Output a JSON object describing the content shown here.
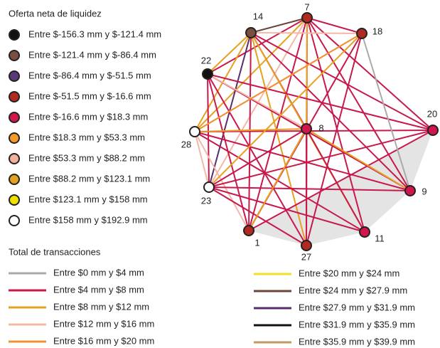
{
  "node_legend": {
    "title": "Oferta neta de liquidez",
    "items": [
      "Entre $-156.3 mm y $-121.4 mm",
      "Entre $-121.4 mm y $-86.4 mm",
      "Entre $-86.4 mm y $-51.5 mm",
      "Entre $-51.5 mm y $-16.6 mm",
      "Entre $-16.6 mm y $18.3 mm",
      "Entre $18.3 mm y $53.3 mm",
      "Entre $53.3 mm y $88.2 mm",
      "Entre $88.2 mm y $123.1 mm",
      "Entre $123.1 mm y $158 mm",
      "Entre $158 mm y $192.9 mm"
    ]
  },
  "edge_legend": {
    "title": "Total de transacciones",
    "items": [
      "Entre $0 mm y $4 mm",
      "Entre $4 mm y $8 mm",
      "Entre $8 mm y $12 mm",
      "Entre $12 mm y $16 mm",
      "Entre $16 mm y $20 mm",
      "Entre $20 mm y $24 mm",
      "Entre $24 mm y $27.9 mm",
      "Entre $27.9 mm y $31.9 mm",
      "Entre $31.9 mm y $35.9 mm",
      "Entre $35.9 mm y $39.9 mm"
    ]
  },
  "nodes": [
    {
      "label": "7"
    },
    {
      "label": "14"
    },
    {
      "label": "18"
    },
    {
      "label": "22"
    },
    {
      "label": "8"
    },
    {
      "label": "20"
    },
    {
      "label": "28"
    },
    {
      "label": "23"
    },
    {
      "label": "9"
    },
    {
      "label": "11"
    },
    {
      "label": "1"
    },
    {
      "label": "27"
    }
  ]
}
